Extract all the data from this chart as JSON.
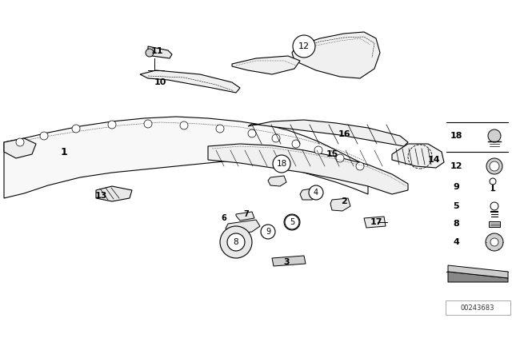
{
  "bg_color": "#ffffff",
  "part_number": "00243683",
  "fig_width": 6.4,
  "fig_height": 4.48,
  "dpi": 100
}
